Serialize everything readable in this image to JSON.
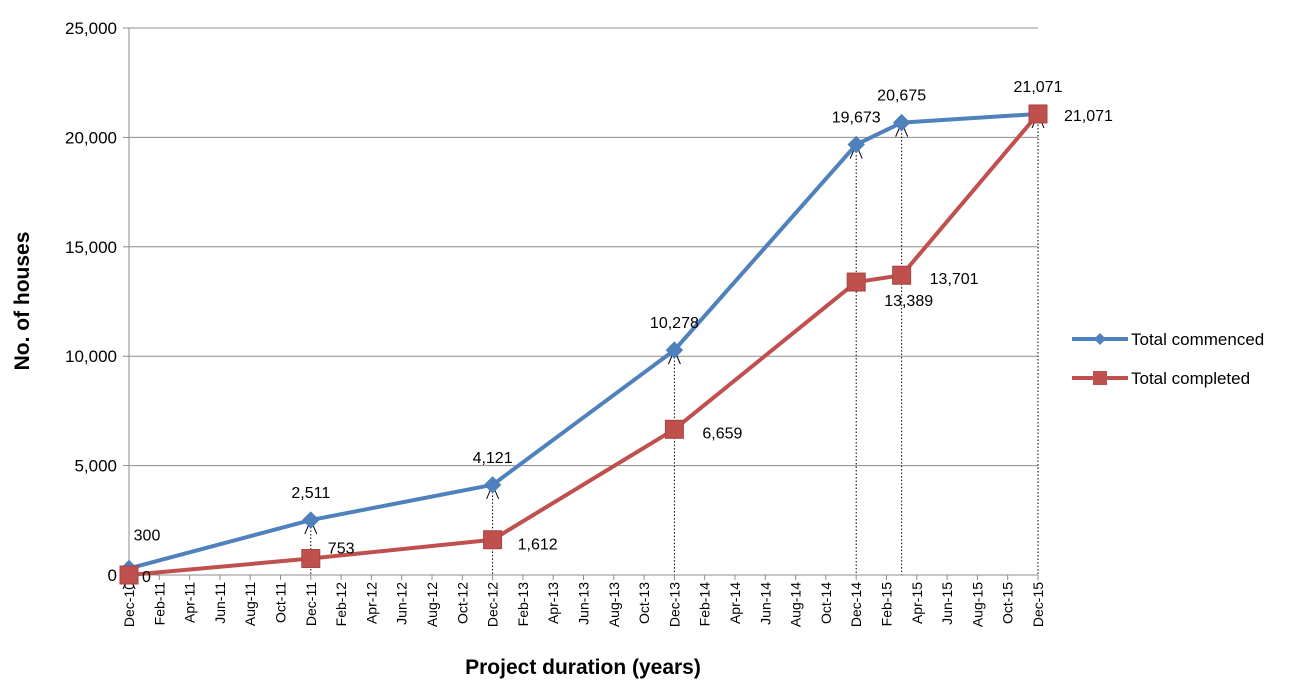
{
  "chart_data": {
    "type": "line",
    "xlabel": "Project duration (years)",
    "ylabel": "No. of houses",
    "ylim": [
      0,
      25000
    ],
    "yticks": [
      0,
      5000,
      10000,
      15000,
      20000,
      25000
    ],
    "ytick_labels": [
      "0",
      "5,000",
      "10,000",
      "15,000",
      "20,000",
      "25,000"
    ],
    "x_tick_labels": [
      "Dec-10",
      "Feb-11",
      "Apr-11",
      "Jun-11",
      "Aug-11",
      "Oct-11",
      "Dec-11",
      "Feb-12",
      "Apr-12",
      "Jun-12",
      "Aug-12",
      "Oct-12",
      "Dec-12",
      "Feb-13",
      "Apr-13",
      "Jun-13",
      "Aug-13",
      "Oct-13",
      "Dec-13",
      "Feb-14",
      "Apr-14",
      "Jun-14",
      "Aug-14",
      "Oct-14",
      "Dec-14",
      "Feb-15",
      "Apr-15",
      "Jun-15",
      "Aug-15",
      "Oct-15",
      "Dec-15"
    ],
    "grid": true,
    "legend_position": "right",
    "series": [
      {
        "name": "Total commenced",
        "color": "#4f81bd",
        "marker": "diamond",
        "points": [
          {
            "x": "Dec-10",
            "y": 300,
            "label": "300"
          },
          {
            "x": "Dec-11",
            "y": 2511,
            "label": "2,511"
          },
          {
            "x": "Dec-12",
            "y": 4121,
            "label": "4,121"
          },
          {
            "x": "Dec-13",
            "y": 10278,
            "label": "10,278"
          },
          {
            "x": "Dec-14",
            "y": 19673,
            "label": "19,673"
          },
          {
            "x": "Mar-15",
            "y": 20675,
            "label": "20,675"
          },
          {
            "x": "Dec-15",
            "y": 21071,
            "label": "21,071"
          }
        ]
      },
      {
        "name": "Total completed",
        "color": "#c0504d",
        "marker": "square",
        "points": [
          {
            "x": "Dec-10",
            "y": 0,
            "label": "0"
          },
          {
            "x": "Dec-11",
            "y": 753,
            "label": "753"
          },
          {
            "x": "Dec-12",
            "y": 1612,
            "label": "1,612"
          },
          {
            "x": "Dec-13",
            "y": 6659,
            "label": "6,659"
          },
          {
            "x": "Dec-14",
            "y": 13389,
            "label": "13,389"
          },
          {
            "x": "Mar-15",
            "y": 13701,
            "label": "13,701"
          },
          {
            "x": "Dec-15",
            "y": 21071,
            "label": "21,071"
          }
        ]
      }
    ],
    "reference_lines_at": [
      "Dec-11",
      "Dec-12",
      "Dec-13",
      "Dec-14",
      "Mar-15",
      "Dec-15"
    ]
  }
}
